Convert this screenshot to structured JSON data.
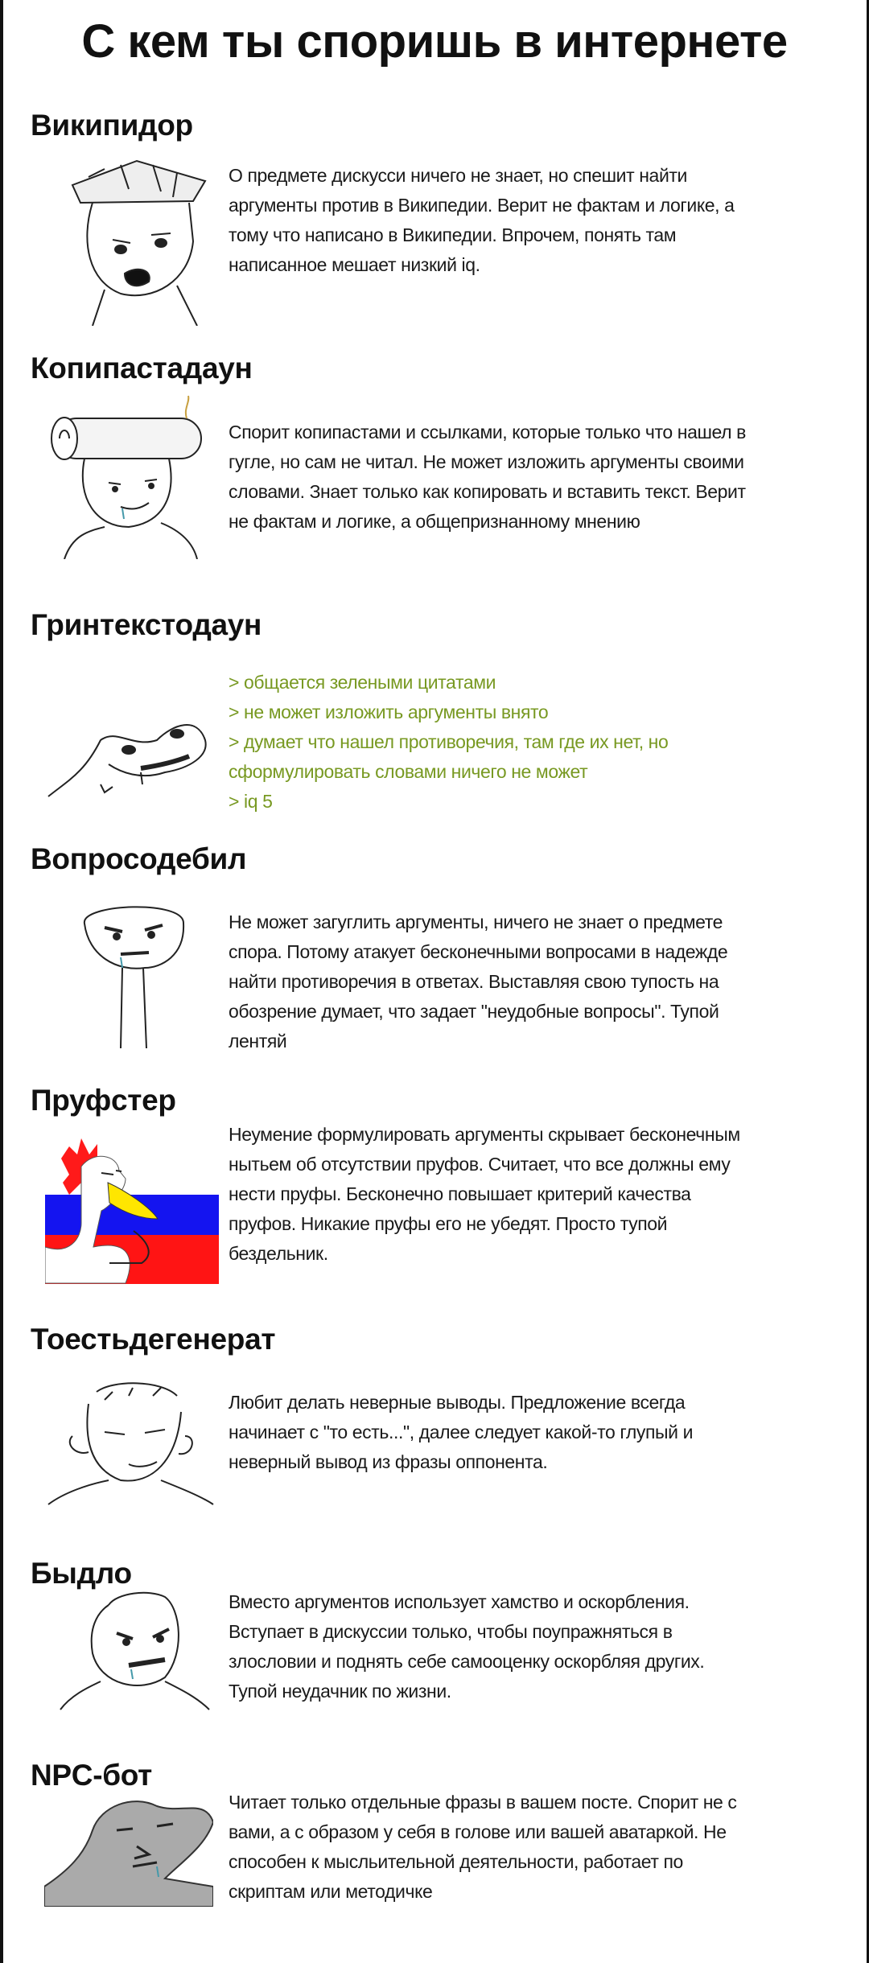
{
  "title": "С кем ты споришь в интернете",
  "colors": {
    "greentext": "#789922",
    "flag_white": "#ffffff",
    "flag_blue": "#1414f0",
    "flag_red": "#ff1414"
  },
  "sections": [
    {
      "heading": "Википидор",
      "image": "wojak-with-books-on-head",
      "lines": [
        "О предмете дискусси ничего не знает, но спешит найти",
        "аргументы против в Википедии. Верит не фактам и логике, а",
        "тому что написано в Википедии. Впрочем, понять там",
        "написанное мешает низкий iq."
      ]
    },
    {
      "heading": "Копипастадаун",
      "image": "wojak-with-log-on-head",
      "lines": [
        "Спорит копипастами и ссылками, которые только что нашел в",
        "гугле, но сам не читал. Не может изложить аргументы своими",
        "словами. Знает только как копировать и вставить текст. Верит",
        "не фактам и логике, а общепризнанному мнению"
      ]
    },
    {
      "heading": "Гринтекстодаун",
      "image": "flat-wojak-face",
      "lines": [
        "> общается зелеными цитатами",
        "> не может изложить аргументы внято",
        "> думает что нашел противоречия, там где их нет, но",
        "сформулировать словами ничего не может",
        "> iq 5"
      ]
    },
    {
      "heading": "Вопросодебил",
      "image": "long-neck-wojak",
      "lines": [
        "Не может загуглить аргументы, ничего не знает о предмете",
        "спора. Потому атакует бесконечными вопросами в надежде",
        "найти противоречия в ответах. Выставляя свою тупость на",
        "обозрение думает, что задает \"неудобные вопросы\". Тупой",
        "лентяй"
      ]
    },
    {
      "heading": "Пруфстер",
      "image": "rooster-on-flag",
      "lines": [
        "Неумение формулировать аргументы скрывает бесконечным",
        "нытьем об отсутствии пруфов. Считает, что все должны ему",
        "нести пруфы. Бесконечно повышает критерий качества",
        "пруфов. Никакие пруфы его не убедят. Просто тупой",
        "бездельник."
      ]
    },
    {
      "heading": "Тоестьдегенерат",
      "image": "wojak-squinting",
      "lines": [
        "Любит делать неверные выводы. Предложение всегда",
        "начинает с \"то есть...\", далее следует какой-то глупый и",
        "неверный вывод из фразы оппонента."
      ]
    },
    {
      "heading": "Быдло",
      "image": "angry-wojak",
      "lines": [
        "Вместо аргументов использует хамство и оскорбления.",
        "Вступает в дискуссии только, чтобы поупражняться в",
        "злословии и поднять себе самооценку оскорбляя других.",
        "Тупой неудачник по жизни."
      ]
    },
    {
      "heading": "NPC-бот",
      "image": "grey-npc-wojak",
      "lines": [
        "Читает только отдельные фразы в вашем посте. Спорит не с",
        "вами, а с образом у себя в голове или вашей аватаркой. Не",
        "способен к мысльительной деятельности, работает по",
        "скриптам или методичке"
      ]
    }
  ]
}
